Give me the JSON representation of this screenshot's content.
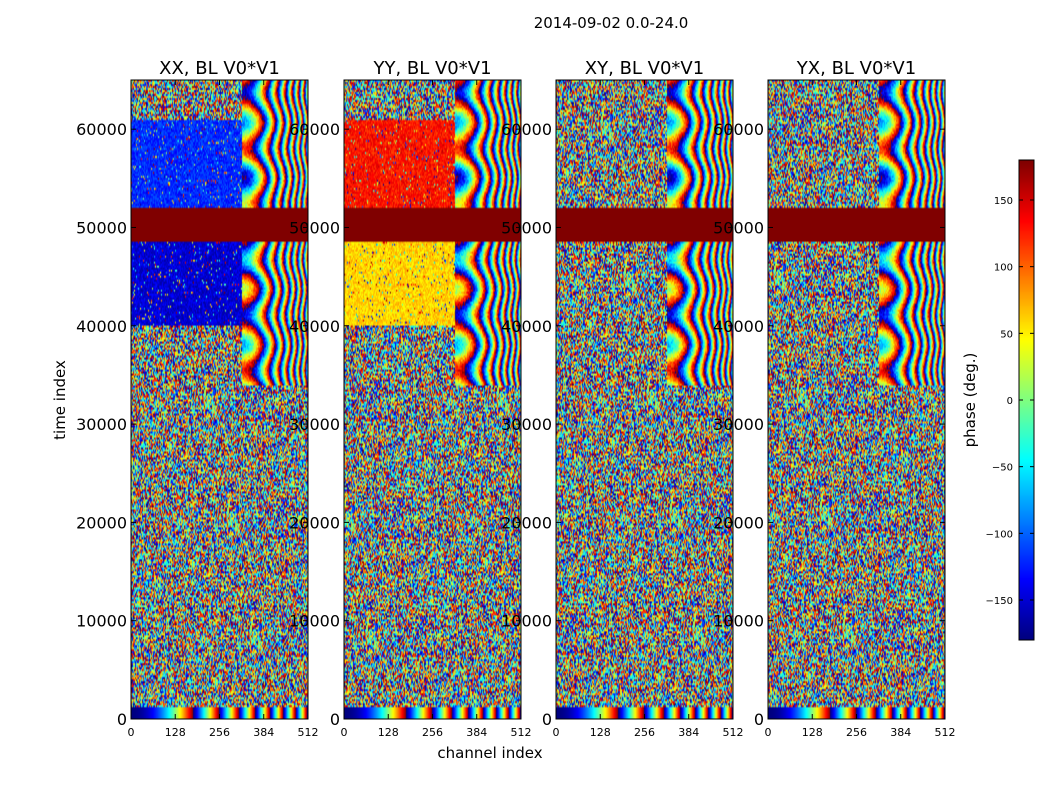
{
  "chart_data": {
    "type": "heatmap",
    "suptitle": "2014-09-02 0.0-24.0",
    "xlabel": "channel index",
    "ylabel": "time index",
    "xlim": [
      0,
      512
    ],
    "ylim": [
      0,
      65000
    ],
    "xticks": [
      0,
      128,
      256,
      384,
      512
    ],
    "yticks": [
      0,
      10000,
      20000,
      30000,
      40000,
      50000,
      60000
    ],
    "panels": [
      {
        "title": "XX, BL V0*V1",
        "hue": -120,
        "regions": [
          {
            "t0": 52000,
            "t1": 61000,
            "c0": 0,
            "c1": 320,
            "phase": -120
          },
          {
            "t0": 40000,
            "t1": 48500,
            "c0": 0,
            "c1": 320,
            "phase": -150
          }
        ]
      },
      {
        "title": "YY, BL V0*V1",
        "hue": 120,
        "regions": [
          {
            "t0": 52000,
            "t1": 61000,
            "c0": 0,
            "c1": 320,
            "phase": 130
          },
          {
            "t0": 40000,
            "t1": 48500,
            "c0": 0,
            "c1": 320,
            "phase": 60
          }
        ]
      },
      {
        "title": "XY, BL V0*V1",
        "hue": 0,
        "regions": []
      },
      {
        "title": "YX, BL V0*V1",
        "hue": 0,
        "regions": []
      }
    ],
    "flagged_band": {
      "t0": 48500,
      "t1": 52000,
      "phase": 180
    },
    "fringe_region": {
      "t0": 34000,
      "t1": 65000,
      "c0": 320,
      "c1": 512
    },
    "bottom_fringe": {
      "t0": 0,
      "t1": 1200
    },
    "colorbar": {
      "label": "phase (deg.)",
      "range": [
        -180,
        180
      ],
      "ticks": [
        -150,
        -100,
        -50,
        0,
        50,
        100,
        150
      ],
      "ticklabels": [
        "−150",
        "−100",
        "−50",
        "0",
        "50",
        "100",
        "150"
      ],
      "colormap": "jet"
    }
  }
}
